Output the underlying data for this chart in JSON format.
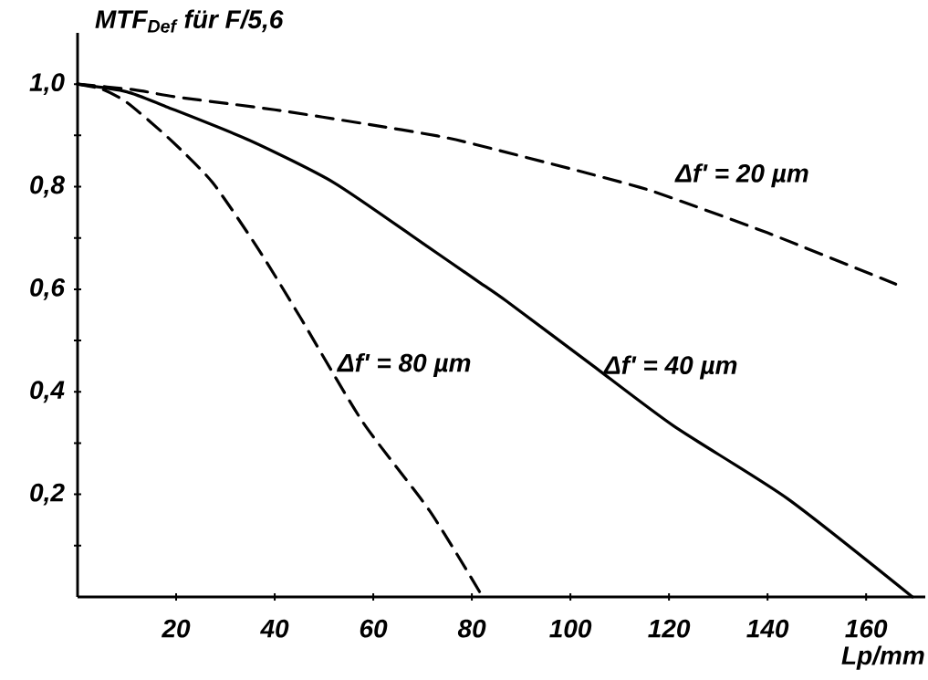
{
  "chart_data": {
    "type": "line",
    "ylabel": "MTF$_{Def}$ für F/5,6",
    "xlabel": "Lp/mm",
    "xlim": [
      0,
      172
    ],
    "ylim": [
      0,
      1.1
    ],
    "xticks": [
      20,
      40,
      60,
      80,
      100,
      120,
      140,
      160
    ],
    "yticks": [
      {
        "value": 0.1,
        "label": null
      },
      {
        "value": 0.2,
        "label": "0,2"
      },
      {
        "value": 0.3,
        "label": null
      },
      {
        "value": 0.4,
        "label": "0,4"
      },
      {
        "value": 0.5,
        "label": null
      },
      {
        "value": 0.6,
        "label": "0,6"
      },
      {
        "value": 0.7,
        "label": null
      },
      {
        "value": 0.8,
        "label": "0,8"
      },
      {
        "value": 0.9,
        "label": null
      },
      {
        "value": 1.0,
        "label": "1,0"
      }
    ],
    "grid": false,
    "legend": false,
    "marker": "none",
    "series": [
      {
        "name": "Δf' = 20 µm",
        "color": "#000000",
        "line_style": "dashed",
        "x": [
          0,
          11.5,
          20,
          40,
          60,
          73,
          80,
          100,
          114,
          120,
          140,
          166
        ],
        "values": [
          1.0,
          0.989,
          0.975,
          0.95,
          0.92,
          0.899,
          0.884,
          0.835,
          0.799,
          0.78,
          0.71,
          0.61
        ]
      },
      {
        "name": "Δf' = 40 µm",
        "color": "#000000",
        "line_style": "solid",
        "x": [
          0,
          10,
          18,
          35,
          52,
          70,
          81,
          87,
          104,
          121,
          144,
          169.4
        ],
        "values": [
          1.0,
          0.985,
          0.956,
          0.89,
          0.808,
          0.69,
          0.617,
          0.577,
          0.455,
          0.333,
          0.192,
          0
        ]
      },
      {
        "name": "Δf' = 80 µm",
        "color": "#000000",
        "line_style": "dashed",
        "x": [
          0,
          5,
          10.2,
          18.9,
          27.4,
          36.7,
          45.2,
          57.8,
          71.5,
          82.2
        ],
        "values": [
          1.0,
          0.99,
          0.963,
          0.891,
          0.808,
          0.678,
          0.545,
          0.342,
          0.167,
          0
        ]
      }
    ]
  }
}
